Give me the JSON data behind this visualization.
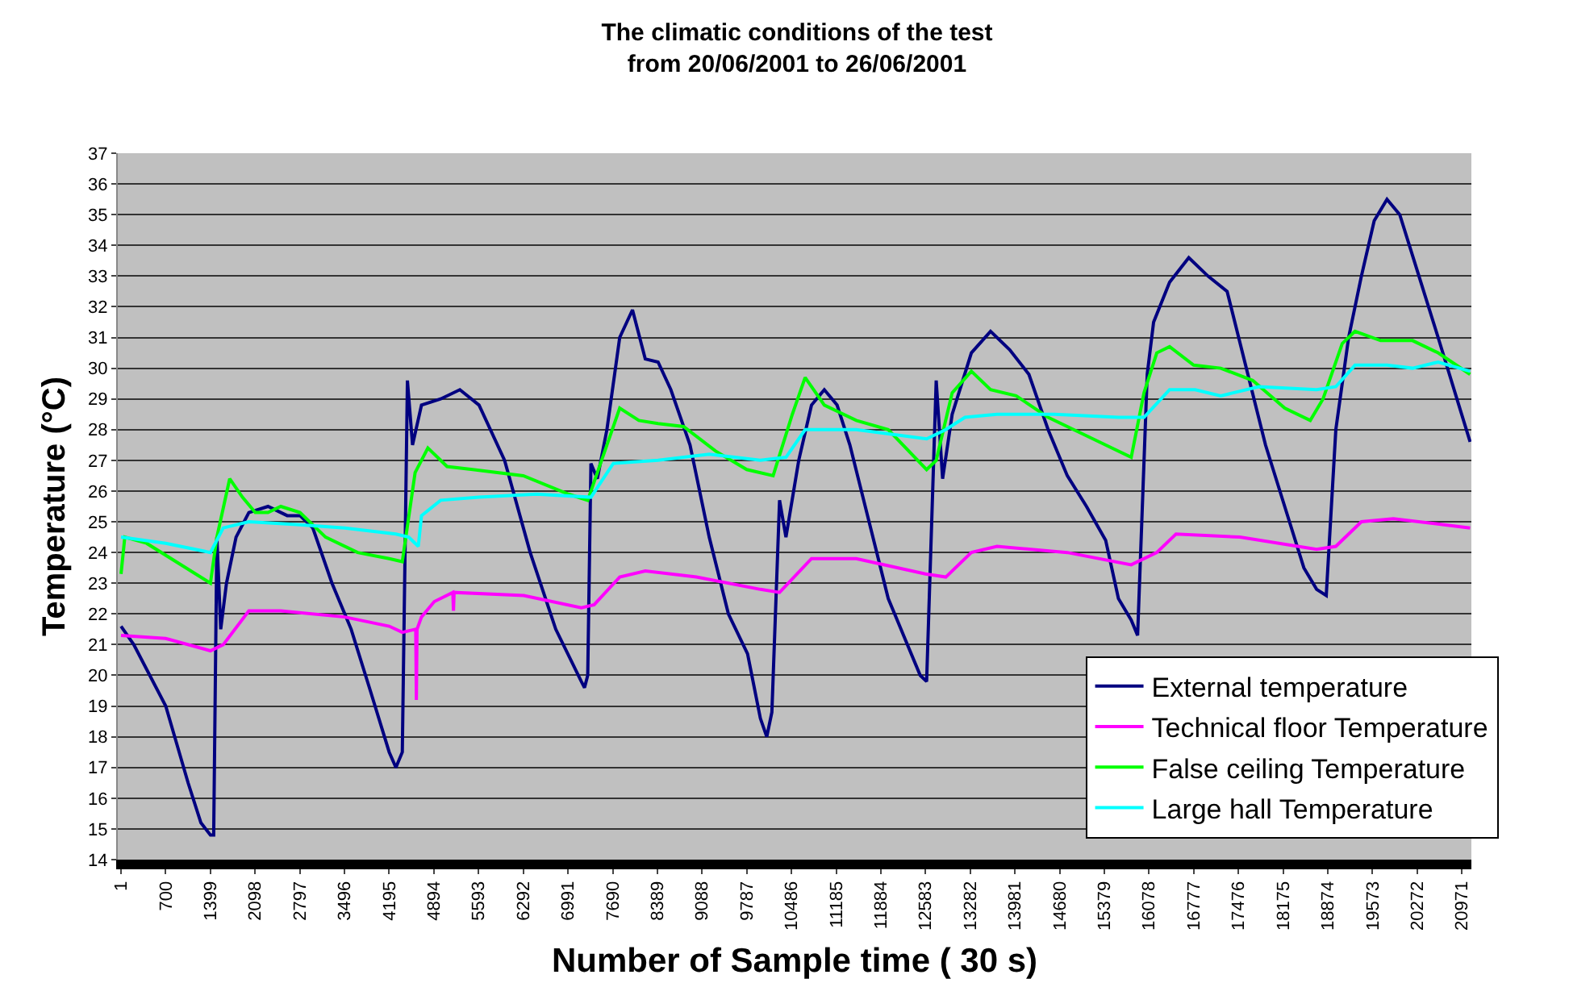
{
  "chart_data": {
    "type": "line",
    "title": "The climatic conditions of the test\nfrom 20/06/2001 to 26/06/2001",
    "xlabel": "Number of Sample time ( 30 s)",
    "ylabel": "Temperature (°C)",
    "xlim": [
      -50,
      21120
    ],
    "xticks": [
      1,
      700,
      1399,
      2098,
      2797,
      3496,
      4195,
      4894,
      5593,
      6292,
      6991,
      7690,
      8389,
      9088,
      9787,
      10486,
      11185,
      11884,
      12583,
      13282,
      13981,
      14680,
      15379,
      16078,
      16777,
      17476,
      18175,
      18874,
      19573,
      20272,
      20971
    ],
    "ylim": [
      14,
      37
    ],
    "yticks": [
      14,
      15,
      16,
      17,
      18,
      19,
      20,
      21,
      22,
      23,
      24,
      25,
      26,
      27,
      28,
      29,
      30,
      31,
      32,
      33,
      34,
      35,
      36,
      37
    ],
    "grid": "y",
    "legend": "bottom right",
    "marker": "none",
    "line_style": "solid",
    "series": [
      {
        "name": "External temperature",
        "color": "#000080",
        "x": [
          1,
          200,
          700,
          1050,
          1250,
          1399,
          1450,
          1500,
          1560,
          1650,
          1800,
          2000,
          2300,
          2600,
          2800,
          3000,
          3300,
          3600,
          3900,
          4195,
          4300,
          4400,
          4480,
          4560,
          4700,
          5000,
          5300,
          5600,
          6000,
          6400,
          6800,
          7200,
          7250,
          7300,
          7350,
          7450,
          7600,
          7800,
          8000,
          8200,
          8400,
          8600,
          8900,
          9200,
          9500,
          9800,
          10000,
          10100,
          10180,
          10300,
          10400,
          10600,
          10800,
          11000,
          11200,
          11400,
          11700,
          12000,
          12300,
          12500,
          12600,
          12750,
          12850,
          13000,
          13300,
          13600,
          13900,
          14200,
          14500,
          14800,
          15100,
          15400,
          15600,
          15800,
          15900,
          16050,
          16150,
          16400,
          16700,
          17000,
          17300,
          17600,
          17900,
          18200,
          18500,
          18700,
          18850,
          19000,
          19200,
          19400,
          19600,
          19800,
          20000,
          20300,
          20600,
          21100
        ],
        "values": [
          21.6,
          21,
          19,
          16.5,
          15.2,
          14.8,
          14.8,
          24.5,
          21.5,
          23,
          24.5,
          25.3,
          25.5,
          25.2,
          25.2,
          24.8,
          23,
          21.5,
          19.5,
          17.5,
          17,
          17.5,
          29.6,
          27.5,
          28.8,
          29,
          29.3,
          28.8,
          27,
          24,
          21.5,
          19.8,
          19.6,
          20,
          26.9,
          26.4,
          28,
          31,
          31.9,
          30.3,
          30.2,
          29.3,
          27.5,
          24.5,
          22,
          20.7,
          18.6,
          18,
          18.8,
          25.7,
          24.5,
          27,
          28.8,
          29.3,
          28.8,
          27.5,
          25,
          22.5,
          21,
          20,
          19.8,
          29.6,
          26.4,
          28.5,
          30.5,
          31.2,
          30.6,
          29.8,
          28,
          26.5,
          25.5,
          24.4,
          22.5,
          21.8,
          21.3,
          29.8,
          31.5,
          32.8,
          33.6,
          33,
          32.5,
          30,
          27.5,
          25.5,
          23.5,
          22.8,
          22.6,
          28,
          31,
          33,
          34.8,
          35.5,
          35,
          33,
          31,
          27.6
        ]
      },
      {
        "name": "Technical floor Temperature",
        "color": "#ff00ff",
        "x": [
          1,
          700,
          1399,
          1600,
          2000,
          2500,
          3500,
          4195,
          4400,
          4610,
          4620,
          4630,
          4700,
          4900,
          5190,
          5200,
          5210,
          6300,
          7200,
          7400,
          7800,
          8200,
          9000,
          10000,
          10300,
          10800,
          11500,
          12583,
          12900,
          13300,
          13700,
          14800,
          15800,
          16200,
          16500,
          17500,
          18700,
          19000,
          19400,
          19900,
          21100
        ],
        "values": [
          21.3,
          21.2,
          20.8,
          21,
          22.1,
          22.1,
          21.9,
          21.6,
          21.4,
          21.5,
          19.2,
          21.5,
          21.9,
          22.4,
          22.7,
          22.1,
          22.7,
          22.6,
          22.2,
          22.3,
          23.2,
          23.4,
          23.2,
          22.8,
          22.7,
          23.8,
          23.8,
          23.3,
          23.2,
          24,
          24.2,
          24,
          23.6,
          24,
          24.6,
          24.5,
          24.1,
          24.2,
          25,
          25.1,
          24.8
        ]
      },
      {
        "name": "False ceiling Temperature",
        "color": "#00ff00",
        "x": [
          1,
          60,
          400,
          1399,
          1500,
          1700,
          1900,
          2100,
          2300,
          2500,
          2800,
          3200,
          3700,
          4195,
          4400,
          4600,
          4800,
          5100,
          5500,
          6292,
          7000,
          7300,
          7600,
          7800,
          8100,
          8400,
          8800,
          9300,
          9787,
          10200,
          10500,
          10700,
          11000,
          11500,
          12000,
          12600,
          12750,
          13000,
          13300,
          13600,
          14000,
          14500,
          15300,
          15800,
          16000,
          16200,
          16400,
          16777,
          17200,
          17700,
          18200,
          18600,
          18800,
          19100,
          19300,
          19700,
          20200,
          20600,
          21100
        ],
        "values": [
          23.3,
          24.5,
          24.3,
          23,
          24.5,
          26.4,
          25.8,
          25.3,
          25.3,
          25.5,
          25.3,
          24.5,
          24,
          23.8,
          23.7,
          26.6,
          27.4,
          26.8,
          26.7,
          26.5,
          25.9,
          25.7,
          27.5,
          28.7,
          28.3,
          28.2,
          28.1,
          27.3,
          26.7,
          26.5,
          28.5,
          29.7,
          28.8,
          28.3,
          28,
          26.7,
          27,
          29.2,
          29.9,
          29.3,
          29.1,
          28.4,
          27.6,
          27.1,
          29.2,
          30.5,
          30.7,
          30.1,
          30,
          29.6,
          28.7,
          28.3,
          29,
          30.8,
          31.2,
          30.9,
          30.9,
          30.5,
          29.8
        ]
      },
      {
        "name": "Large hall Temperature",
        "color": "#00ffff",
        "x": [
          1,
          700,
          1399,
          1600,
          2000,
          2800,
          3500,
          4300,
          4500,
          4650,
          4700,
          5000,
          5600,
          6500,
          7350,
          7700,
          8400,
          9200,
          10000,
          10400,
          10700,
          11500,
          12600,
          12900,
          13200,
          13700,
          14600,
          15600,
          16000,
          16400,
          16800,
          17200,
          17800,
          18700,
          19000,
          19300,
          19800,
          20200,
          20600,
          21100
        ],
        "values": [
          24.5,
          24.3,
          24,
          24.8,
          25,
          24.9,
          24.8,
          24.6,
          24.5,
          24.2,
          25.2,
          25.7,
          25.8,
          25.9,
          25.8,
          26.9,
          27,
          27.2,
          27,
          27.1,
          28,
          28,
          27.7,
          28,
          28.4,
          28.5,
          28.5,
          28.4,
          28.4,
          29.3,
          29.3,
          29.1,
          29.4,
          29.3,
          29.4,
          30.1,
          30.1,
          30,
          30.2,
          29.9
        ]
      }
    ]
  }
}
